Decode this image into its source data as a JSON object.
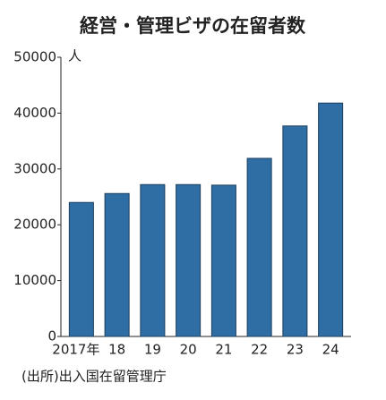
{
  "chart_data": {
    "type": "bar",
    "title": "経営・管理ビザの在留者数",
    "y_unit": "人",
    "categories": [
      "2017年",
      "18",
      "19",
      "20",
      "21",
      "22",
      "23",
      "24"
    ],
    "values": [
      24000,
      25600,
      27200,
      27200,
      27100,
      31900,
      37700,
      41800
    ],
    "color": "#2f6ea5",
    "ylim": [
      0,
      50000
    ],
    "yticks": [
      0,
      10000,
      20000,
      30000,
      40000,
      50000
    ],
    "grid": false,
    "source": "(出所)出入国在留管理庁"
  }
}
